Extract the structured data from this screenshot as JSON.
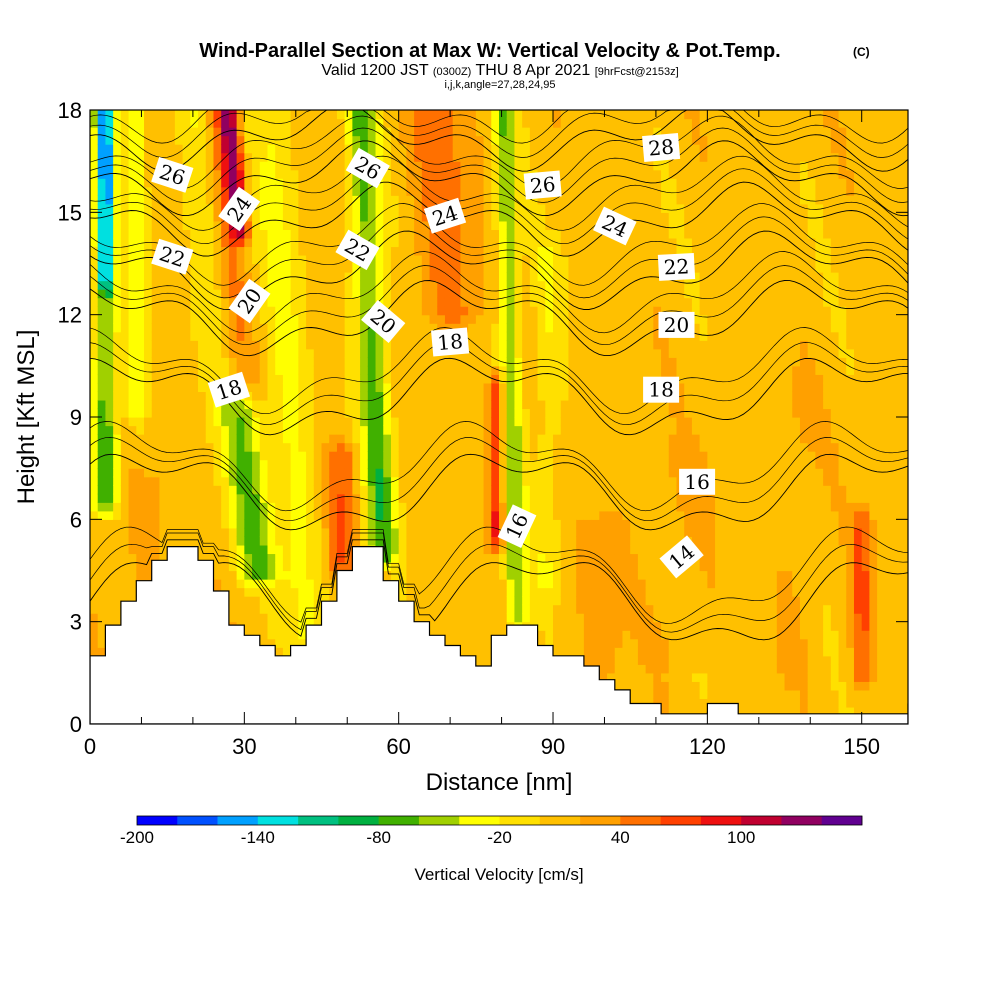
{
  "chart_data": {
    "type": "heatmap",
    "title": "Wind-Parallel Section at Max W: Vertical Velocity & Pot.Temp.",
    "copyright": "(C)",
    "subtitle_main": "Valid 1200 JST",
    "subtitle_utc": "(0300Z)",
    "subtitle_date": "THU 8 Apr 2021",
    "subtitle_run": "[9hrFcst@2153z]",
    "subtitle_indices": "i,j,k,angle=27,28,24,95",
    "xlabel": "Distance [nm]",
    "ylabel": "Height [Kft MSL]",
    "xlim": [
      0,
      159
    ],
    "ylim": [
      0,
      18
    ],
    "x_ticks": [
      "0",
      "30",
      "60",
      "90",
      "120",
      "150"
    ],
    "x_tick_values": [
      0,
      30,
      60,
      90,
      120,
      150
    ],
    "x_minor_ticks": [
      10,
      20,
      40,
      50,
      70,
      80,
      100,
      110,
      130,
      140
    ],
    "y_ticks": [
      "0",
      "3",
      "6",
      "9",
      "12",
      "15",
      "18"
    ],
    "y_tick_values": [
      0,
      3,
      6,
      9,
      12,
      15,
      18
    ],
    "colorbar": {
      "label": "Vertical Velocity [cm/s]",
      "min": -200,
      "step": 20,
      "tick_labels": [
        "-200",
        "-140",
        "-80",
        "-20",
        "40",
        "100"
      ],
      "tick_values": [
        -200,
        -140,
        -80,
        -20,
        40,
        100
      ],
      "colors": [
        "#0000ff",
        "#0050ff",
        "#00a0ff",
        "#00e0e0",
        "#00c080",
        "#00b040",
        "#40b000",
        "#a0d000",
        "#ffff00",
        "#ffe000",
        "#ffc000",
        "#ffa000",
        "#ff7000",
        "#ff4000",
        "#ee1010",
        "#c00030",
        "#900060",
        "#600090"
      ]
    },
    "velocity_background": 10,
    "velocity_features": [
      {
        "x": 3,
        "y0": 6.5,
        "y1": 18,
        "width": 2.5,
        "value": -70
      },
      {
        "x": 3,
        "y0": 13,
        "y1": 18,
        "width": 1.2,
        "value": -90
      },
      {
        "x": 9,
        "y0": 9,
        "y1": 18,
        "width": 2,
        "value": -35
      },
      {
        "x": 29,
        "y0": 10,
        "y1": 18,
        "width": 3.5,
        "value": 90,
        "lean": -11
      },
      {
        "x": 29,
        "y0": 14.5,
        "y1": 18,
        "width": 1.8,
        "value": 120,
        "lean": -11
      },
      {
        "x": 33,
        "y0": 4.4,
        "y1": 18,
        "width": 4,
        "value": -60,
        "lean": -15
      },
      {
        "x": 42,
        "y0": 2.5,
        "y1": 18,
        "width": 4,
        "value": -25,
        "lean": -8
      },
      {
        "x": 49,
        "y0": 4.5,
        "y1": 8,
        "width": 3,
        "value": 55
      },
      {
        "x": 57,
        "y0": 5,
        "y1": 18,
        "width": 3,
        "value": -70,
        "lean": -6
      },
      {
        "x": 70,
        "y0": 12,
        "y1": 18,
        "width": 6,
        "value": 50,
        "lean": -8
      },
      {
        "x": 79,
        "y0": 5.5,
        "y1": 10,
        "width": 1.6,
        "value": 85
      },
      {
        "x": 83,
        "y0": 3,
        "y1": 18,
        "width": 2.2,
        "value": -55,
        "lean": -3
      },
      {
        "x": 89,
        "y0": 4,
        "y1": 14,
        "width": 3,
        "value": -15
      },
      {
        "x": 150,
        "y0": 1.5,
        "y1": 6,
        "width": 2,
        "value": 60
      },
      {
        "x": 137,
        "y0": 1.5,
        "y1": 10,
        "width": 4,
        "value": 20
      },
      {
        "x": 100,
        "y0": 1.5,
        "y1": 6,
        "width": 5,
        "value": 25
      },
      {
        "x": 115,
        "y0": 2,
        "y1": 8,
        "width": 6,
        "value": 20
      },
      {
        "x": 10,
        "y0": 3,
        "y1": 7,
        "width": 5,
        "value": 25
      }
    ],
    "terrain": [
      [
        0,
        2
      ],
      [
        3,
        2
      ],
      [
        3,
        2.9
      ],
      [
        6,
        2.9
      ],
      [
        6,
        3.6
      ],
      [
        9,
        3.6
      ],
      [
        9,
        4.2
      ],
      [
        12,
        4.2
      ],
      [
        12,
        4.8
      ],
      [
        15,
        4.8
      ],
      [
        15,
        5.2
      ],
      [
        21,
        5.2
      ],
      [
        21,
        4.8
      ],
      [
        24,
        4.8
      ],
      [
        24,
        3.9
      ],
      [
        27,
        3.9
      ],
      [
        27,
        2.9
      ],
      [
        30,
        2.9
      ],
      [
        30,
        2.6
      ],
      [
        33,
        2.6
      ],
      [
        33,
        2.3
      ],
      [
        36,
        2.3
      ],
      [
        36,
        2
      ],
      [
        39,
        2
      ],
      [
        39,
        2.3
      ],
      [
        42,
        2.3
      ],
      [
        42,
        2.9
      ],
      [
        45,
        2.9
      ],
      [
        45,
        3.6
      ],
      [
        48,
        3.6
      ],
      [
        48,
        4.5
      ],
      [
        51,
        4.5
      ],
      [
        51,
        5.2
      ],
      [
        57,
        5.2
      ],
      [
        57,
        4.2
      ],
      [
        60,
        4.2
      ],
      [
        60,
        3.6
      ],
      [
        63,
        3.6
      ],
      [
        63,
        3
      ],
      [
        66,
        3
      ],
      [
        66,
        2.6
      ],
      [
        69,
        2.6
      ],
      [
        69,
        2.3
      ],
      [
        72,
        2.3
      ],
      [
        72,
        2
      ],
      [
        75,
        2
      ],
      [
        75,
        1.7
      ],
      [
        78,
        1.7
      ],
      [
        78,
        2.6
      ],
      [
        81,
        2.6
      ],
      [
        81,
        2.9
      ],
      [
        87,
        2.9
      ],
      [
        87,
        2.3
      ],
      [
        90,
        2.3
      ],
      [
        90,
        2
      ],
      [
        96,
        2
      ],
      [
        96,
        1.7
      ],
      [
        99,
        1.7
      ],
      [
        99,
        1.3
      ],
      [
        102,
        1.3
      ],
      [
        102,
        1
      ],
      [
        105,
        1
      ],
      [
        105,
        0.6
      ],
      [
        111,
        0.6
      ],
      [
        111,
        0.3
      ],
      [
        120,
        0.3
      ],
      [
        120,
        0.6
      ],
      [
        126,
        0.6
      ],
      [
        126,
        0.3
      ],
      [
        131,
        0.3
      ],
      [
        131,
        0.3
      ],
      [
        159,
        0.3
      ],
      [
        159,
        0.6
      ],
      [
        159,
        0
      ]
    ],
    "theta_contours": [
      {
        "label": "14",
        "base": 3.6,
        "amp": 1.2,
        "phase": 0.0
      },
      {
        "label": "16",
        "base": 6.8,
        "amp": 1.0,
        "phase": 0.5
      },
      {
        "label": "18",
        "base": 9.6,
        "amp": 0.9,
        "phase": 1.0
      },
      {
        "label": "20",
        "base": 11.9,
        "amp": 0.8,
        "phase": 1.5
      },
      {
        "label": "22",
        "base": 13.3,
        "amp": 0.8,
        "phase": 2.0
      },
      {
        "label": "24",
        "base": 14.8,
        "amp": 0.7,
        "phase": 2.5
      },
      {
        "label": "26",
        "base": 16.0,
        "amp": 0.7,
        "phase": 3.0
      },
      {
        "label": "28",
        "base": 17.2,
        "amp": 0.6,
        "phase": 3.5
      }
    ],
    "theta_labels": [
      {
        "text": "26",
        "x": 16,
        "y": 16.1,
        "angle": 18
      },
      {
        "text": "22",
        "x": 16,
        "y": 13.7,
        "angle": 18
      },
      {
        "text": "18",
        "x": 27,
        "y": 9.8,
        "angle": -18
      },
      {
        "text": "24",
        "x": 29,
        "y": 15.1,
        "angle": -55
      },
      {
        "text": "20",
        "x": 31,
        "y": 12.4,
        "angle": -55
      },
      {
        "text": "26",
        "x": 54,
        "y": 16.3,
        "angle": 30
      },
      {
        "text": "22",
        "x": 52,
        "y": 13.9,
        "angle": 30
      },
      {
        "text": "20",
        "x": 57,
        "y": 11.8,
        "angle": 40
      },
      {
        "text": "24",
        "x": 69,
        "y": 14.9,
        "angle": -18
      },
      {
        "text": "18",
        "x": 70,
        "y": 11.2,
        "angle": -5
      },
      {
        "text": "16",
        "x": 83,
        "y": 5.8,
        "angle": -65
      },
      {
        "text": "26",
        "x": 88,
        "y": 15.8,
        "angle": -5
      },
      {
        "text": "24",
        "x": 102,
        "y": 14.6,
        "angle": 25
      },
      {
        "text": "28",
        "x": 111,
        "y": 16.9,
        "angle": -5
      },
      {
        "text": "22",
        "x": 114,
        "y": 13.4,
        "angle": -3
      },
      {
        "text": "20",
        "x": 114,
        "y": 11.7,
        "angle": 0
      },
      {
        "text": "18",
        "x": 111,
        "y": 9.8,
        "angle": 0
      },
      {
        "text": "16",
        "x": 118,
        "y": 7.1,
        "angle": 0
      },
      {
        "text": "14",
        "x": 115,
        "y": 4.9,
        "angle": -40
      }
    ]
  }
}
